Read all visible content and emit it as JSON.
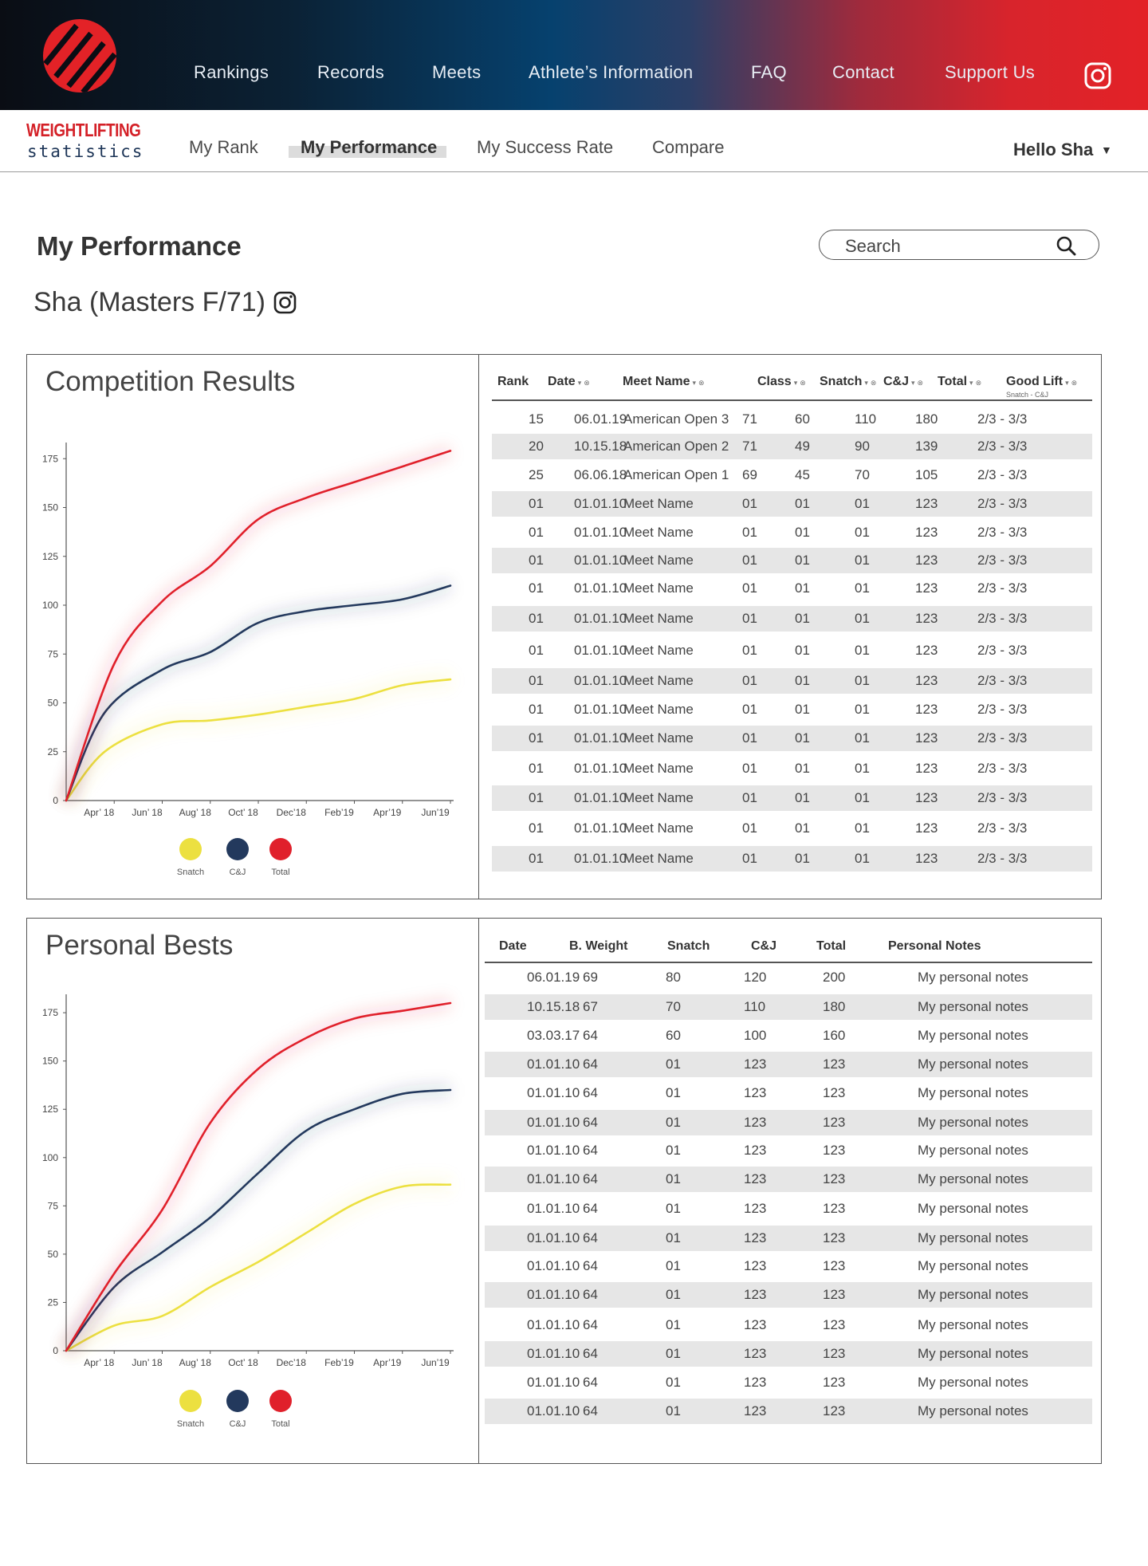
{
  "header": {
    "nav": [
      "Rankings",
      "Records",
      "Meets",
      "Athlete’s Information",
      "FAQ",
      "Contact",
      "Support Us"
    ]
  },
  "brand": {
    "line1": "WEIGHTLIFTING",
    "line2": "statistics"
  },
  "subnav": {
    "items": [
      "My Rank",
      "My Performance",
      "My Success Rate",
      "Compare"
    ],
    "active": "My Performance",
    "greeting": "Hello Sha",
    "caret": "▼"
  },
  "page": {
    "title": "My Performance",
    "athlete": "Sha (Masters F/71)",
    "search_placeholder": "Search"
  },
  "colors": {
    "snatch": "#ece040",
    "cj": "#23395d",
    "total": "#e0202b"
  },
  "competition": {
    "title": "Competition Results",
    "columns": [
      "Rank",
      "Date",
      "Meet Name",
      "Class",
      "Snatch",
      "C&J",
      "Total",
      "Good Lift"
    ],
    "good_lift_sub": "Snatch - C&J",
    "sort_marker": "▾",
    "filter_marker": "⊗",
    "rows": [
      [
        "15",
        "06.01.19",
        "American Open 3",
        "71",
        "60",
        "110",
        "180",
        "2/3 - 3/3"
      ],
      [
        "20",
        "10.15.18",
        "American Open 2",
        "71",
        "49",
        "90",
        "139",
        "2/3 - 3/3"
      ],
      [
        "25",
        "06.06.18",
        "American Open 1",
        "69",
        "45",
        "70",
        "105",
        "2/3 - 3/3"
      ],
      [
        "01",
        "01.01.10",
        "Meet Name",
        "01",
        "01",
        "01",
        "123",
        "2/3 - 3/3"
      ],
      [
        "01",
        "01.01.10",
        "Meet Name",
        "01",
        "01",
        "01",
        "123",
        "2/3 - 3/3"
      ],
      [
        "01",
        "01.01.10",
        "Meet Name",
        "01",
        "01",
        "01",
        "123",
        "2/3 - 3/3"
      ],
      [
        "01",
        "01.01.10",
        "Meet Name",
        "01",
        "01",
        "01",
        "123",
        "2/3 - 3/3"
      ],
      [
        "01",
        "01.01.10",
        "Meet Name",
        "01",
        "01",
        "01",
        "123",
        "2/3 - 3/3"
      ],
      [
        "01",
        "01.01.10",
        "Meet Name",
        "01",
        "01",
        "01",
        "123",
        "2/3 - 3/3"
      ],
      [
        "01",
        "01.01.10",
        "Meet Name",
        "01",
        "01",
        "01",
        "123",
        "2/3 - 3/3"
      ],
      [
        "01",
        "01.01.10",
        "Meet Name",
        "01",
        "01",
        "01",
        "123",
        "2/3 - 3/3"
      ],
      [
        "01",
        "01.01.10",
        "Meet Name",
        "01",
        "01",
        "01",
        "123",
        "2/3 - 3/3"
      ],
      [
        "01",
        "01.01.10",
        "Meet Name",
        "01",
        "01",
        "01",
        "123",
        "2/3 - 3/3"
      ],
      [
        "01",
        "01.01.10",
        "Meet Name",
        "01",
        "01",
        "01",
        "123",
        "2/3 - 3/3"
      ],
      [
        "01",
        "01.01.10",
        "Meet Name",
        "01",
        "01",
        "01",
        "123",
        "2/3 - 3/3"
      ],
      [
        "01",
        "01.01.10",
        "Meet Name",
        "01",
        "01",
        "01",
        "123",
        "2/3 - 3/3"
      ]
    ],
    "shaded": [
      false,
      true,
      false,
      true,
      false,
      true,
      false,
      true,
      false,
      true,
      false,
      true,
      false,
      true,
      false,
      true
    ]
  },
  "bests": {
    "title": "Personal Bests",
    "columns": [
      "Date",
      "B. Weight",
      "Snatch",
      "C&J",
      "Total",
      "Personal Notes"
    ],
    "rows": [
      [
        "06.01.19",
        "69",
        "80",
        "120",
        "200",
        "My personal notes"
      ],
      [
        "10.15.18",
        "67",
        "70",
        "110",
        "180",
        "My personal notes"
      ],
      [
        "03.03.17",
        "64",
        "60",
        "100",
        "160",
        "My personal notes"
      ],
      [
        "01.01.10",
        "64",
        "01",
        "123",
        "123",
        "My personal notes"
      ],
      [
        "01.01.10",
        "64",
        "01",
        "123",
        "123",
        "My personal notes"
      ],
      [
        "01.01.10",
        "64",
        "01",
        "123",
        "123",
        "My personal notes"
      ],
      [
        "01.01.10",
        "64",
        "01",
        "123",
        "123",
        "My personal notes"
      ],
      [
        "01.01.10",
        "64",
        "01",
        "123",
        "123",
        "My personal notes"
      ],
      [
        "01.01.10",
        "64",
        "01",
        "123",
        "123",
        "My personal notes"
      ],
      [
        "01.01.10",
        "64",
        "01",
        "123",
        "123",
        "My personal notes"
      ],
      [
        "01.01.10",
        "64",
        "01",
        "123",
        "123",
        "My personal notes"
      ],
      [
        "01.01.10",
        "64",
        "01",
        "123",
        "123",
        "My personal notes"
      ],
      [
        "01.01.10",
        "64",
        "01",
        "123",
        "123",
        "My personal notes"
      ],
      [
        "01.01.10",
        "64",
        "01",
        "123",
        "123",
        "My personal notes"
      ],
      [
        "01.01.10",
        "64",
        "01",
        "123",
        "123",
        "My personal notes"
      ],
      [
        "01.01.10",
        "64",
        "01",
        "123",
        "123",
        "My personal notes"
      ]
    ],
    "shaded": [
      false,
      true,
      false,
      true,
      false,
      true,
      false,
      true,
      false,
      true,
      false,
      true,
      false,
      true,
      false,
      true
    ]
  },
  "chart_data": [
    {
      "type": "line",
      "chart": "competition",
      "categories": [
        "Apr’ 18",
        "Jun’ 18",
        "Aug’ 18",
        "Oct’ 18",
        "Dec’18",
        "Feb’19",
        "Apr’19",
        "Jun’19"
      ],
      "x_range": [
        0,
        8
      ],
      "ylim": [
        0,
        180
      ],
      "yticks": [
        0,
        25,
        50,
        75,
        100,
        125,
        150,
        175
      ],
      "legend": [
        "Snatch",
        "C&J",
        "Total"
      ],
      "series": [
        {
          "name": "Snatch",
          "points": [
            [
              0,
              0
            ],
            [
              0.8,
              25
            ],
            [
              2,
              39
            ],
            [
              3,
              41
            ],
            [
              4,
              44
            ],
            [
              5,
              48
            ],
            [
              6,
              52
            ],
            [
              7,
              59
            ],
            [
              8,
              62
            ]
          ]
        },
        {
          "name": "C&J",
          "points": [
            [
              0,
              0
            ],
            [
              0.8,
              45
            ],
            [
              2,
              67
            ],
            [
              3,
              76
            ],
            [
              4,
              91
            ],
            [
              5,
              97
            ],
            [
              6,
              100
            ],
            [
              7,
              103
            ],
            [
              8,
              110
            ]
          ]
        },
        {
          "name": "Total",
          "points": [
            [
              0,
              0
            ],
            [
              1,
              70
            ],
            [
              2,
              102
            ],
            [
              3,
              120
            ],
            [
              4,
              144
            ],
            [
              5,
              155
            ],
            [
              6,
              163
            ],
            [
              7,
              171
            ],
            [
              8,
              179
            ]
          ]
        }
      ]
    },
    {
      "type": "line",
      "chart": "bests",
      "categories": [
        "Apr’ 18",
        "Jun’ 18",
        "Aug’ 18",
        "Oct’ 18",
        "Dec’18",
        "Feb’19",
        "Apr’19",
        "Jun’19"
      ],
      "x_range": [
        0,
        8
      ],
      "ylim": [
        0,
        180
      ],
      "yticks": [
        0,
        25,
        50,
        75,
        100,
        125,
        150,
        175
      ],
      "legend": [
        "Snatch",
        "C&J",
        "Total"
      ],
      "series": [
        {
          "name": "Snatch",
          "points": [
            [
              0,
              0
            ],
            [
              1,
              13
            ],
            [
              2,
              18
            ],
            [
              3,
              33
            ],
            [
              4,
              46
            ],
            [
              5,
              61
            ],
            [
              6,
              76
            ],
            [
              7,
              85
            ],
            [
              8,
              86
            ]
          ]
        },
        {
          "name": "C&J",
          "points": [
            [
              0,
              0
            ],
            [
              1,
              33
            ],
            [
              2,
              51
            ],
            [
              3,
              69
            ],
            [
              4,
              92
            ],
            [
              5,
              114
            ],
            [
              6,
              125
            ],
            [
              7,
              133
            ],
            [
              8,
              135
            ]
          ]
        },
        {
          "name": "Total",
          "points": [
            [
              0,
              0
            ],
            [
              1,
              40
            ],
            [
              2,
              73
            ],
            [
              3,
              118
            ],
            [
              4,
              146
            ],
            [
              5,
              162
            ],
            [
              6,
              172
            ],
            [
              7,
              176
            ],
            [
              8,
              180
            ]
          ]
        }
      ]
    }
  ]
}
